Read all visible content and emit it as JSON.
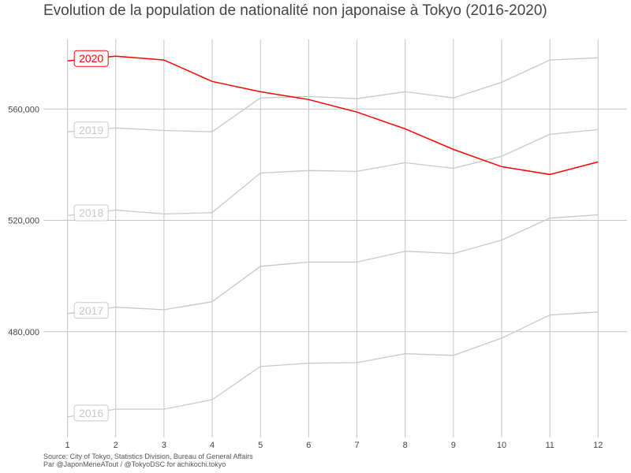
{
  "chart_data": {
    "type": "line",
    "title": "Evolution de la population de nationalité non japonaise à Tokyo (2016-2020)",
    "caption": [
      "Source: City of Tokyo, Statistics Division, Bureau of General Affairs",
      "Par @JaponMeneATout / @TokyoDSC for achikochi.tokyo"
    ],
    "xlabel": "",
    "ylabel": "",
    "x": [
      1,
      2,
      3,
      4,
      5,
      6,
      7,
      8,
      9,
      10,
      11,
      12
    ],
    "xticks": [
      "1",
      "2",
      "3",
      "4",
      "5",
      "6",
      "7",
      "8",
      "9",
      "10",
      "11",
      "12"
    ],
    "yticks": [
      480000,
      520000,
      560000
    ],
    "ytick_labels": [
      "480,000",
      "520,000",
      "560,000"
    ],
    "xlim": [
      0.5,
      12.6
    ],
    "ylim": [
      442000,
      585000
    ],
    "grid": true,
    "legend": "none (direct labels at left)",
    "highlight_color": "#ff0000",
    "other_color": "#c8c8c8",
    "series": [
      {
        "name": "2016",
        "highlight": false,
        "values": [
          449400,
          452200,
          452200,
          455600,
          467500,
          468700,
          468900,
          472100,
          471500,
          477700,
          486000,
          487100
        ]
      },
      {
        "name": "2017",
        "highlight": false,
        "values": [
          486500,
          488800,
          487900,
          490800,
          503500,
          505000,
          505000,
          508900,
          508100,
          512900,
          520800,
          522000
        ]
      },
      {
        "name": "2018",
        "highlight": false,
        "values": [
          521700,
          523700,
          522300,
          522800,
          537000,
          537900,
          537600,
          540700,
          538700,
          543000,
          550900,
          552600
        ]
      },
      {
        "name": "2019",
        "highlight": false,
        "values": [
          551800,
          553200,
          552300,
          551800,
          564000,
          564500,
          563700,
          566200,
          564000,
          569600,
          577600,
          578400
        ]
      },
      {
        "name": "2020",
        "highlight": true,
        "values": [
          577300,
          579000,
          577600,
          569900,
          566200,
          563400,
          558900,
          552900,
          545500,
          539300,
          536500,
          541000
        ]
      }
    ]
  }
}
